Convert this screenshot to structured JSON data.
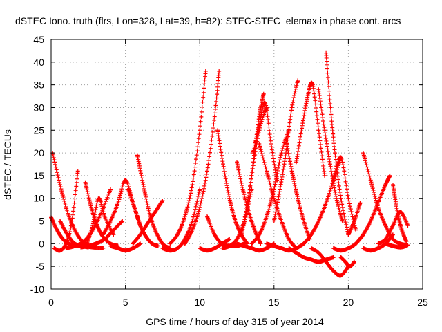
{
  "chart_data": {
    "type": "scatter",
    "title": "dSTEC Iono. truth (flrs, Lon=328, Lat=39, h=82): STEC-STEC_elemax in phase cont. arcs",
    "xlabel": "GPS time / hours of day 315 of year 2014",
    "ylabel": "dSTEC  / TECUs",
    "xlim": [
      0,
      25
    ],
    "ylim": [
      -10,
      45
    ],
    "x_ticks": [
      0,
      5,
      10,
      15,
      20,
      25
    ],
    "y_ticks": [
      -10,
      -5,
      0,
      5,
      10,
      15,
      20,
      25,
      30,
      35,
      40,
      45
    ],
    "grid": true,
    "marker": "+",
    "color": "#ff0000",
    "series": [
      {
        "x": [
          0.1,
          0.6,
          1.1,
          1.6,
          2.1,
          2.6,
          3.0
        ],
        "y": [
          20,
          13,
          7,
          3,
          0.5,
          -0.5,
          -0.8
        ]
      },
      {
        "x": [
          0.0,
          0.4,
          0.8,
          1.2,
          1.6,
          2.0,
          2.5
        ],
        "y": [
          5.8,
          3,
          1,
          0,
          -0.3,
          -0.5,
          -0.8
        ]
      },
      {
        "x": [
          0.2,
          0.6,
          1.0,
          1.4,
          1.8
        ],
        "y": [
          -1,
          -1.5,
          0,
          5,
          16
        ]
      },
      {
        "x": [
          0.6,
          1.1,
          1.6,
          2.2,
          2.8,
          3.5
        ],
        "y": [
          5,
          2,
          0,
          -0.5,
          -0.8,
          -1
        ]
      },
      {
        "x": [
          1.0,
          1.6,
          2.2,
          2.8,
          3.4,
          4.0
        ],
        "y": [
          -1,
          -0.5,
          0.5,
          3,
          7,
          12
        ]
      },
      {
        "x": [
          2.3,
          2.7,
          3.1,
          3.5,
          4.0,
          4.5
        ],
        "y": [
          13.5,
          8,
          4,
          1.5,
          0,
          -0.5
        ]
      },
      {
        "x": [
          2.4,
          2.8,
          3.2,
          3.6,
          4.2
        ],
        "y": [
          0,
          4,
          10,
          6,
          2
        ]
      },
      {
        "x": [
          2.0,
          2.5,
          3.0,
          3.6,
          4.2,
          4.8
        ],
        "y": [
          -0.8,
          -0.5,
          0,
          1,
          3,
          5
        ]
      },
      {
        "x": [
          3.5,
          4.0,
          4.5,
          5.0,
          5.5,
          6.0
        ],
        "y": [
          2,
          5,
          9,
          14,
          9,
          4
        ]
      },
      {
        "x": [
          4.0,
          4.5,
          5.0,
          5.5,
          6.0
        ],
        "y": [
          -0.5,
          -1,
          -1.5,
          -1,
          0
        ]
      },
      {
        "x": [
          5.2,
          5.6,
          6.0,
          6.4,
          6.8,
          7.2
        ],
        "y": [
          12,
          8,
          4,
          1.5,
          0,
          -0.5
        ]
      },
      {
        "x": [
          5.8,
          6.2,
          6.6,
          7.0,
          7.5,
          8.0
        ],
        "y": [
          19.5,
          13,
          7,
          3,
          0,
          -1
        ]
      },
      {
        "x": [
          5.5,
          6.0,
          6.5,
          7.0,
          7.5
        ],
        "y": [
          0,
          2,
          4.5,
          7,
          9.5
        ]
      },
      {
        "x": [
          7.5,
          8.0,
          8.5,
          9.0,
          9.5,
          10.0
        ],
        "y": [
          -1,
          -1.5,
          -1,
          1,
          5,
          12
        ]
      },
      {
        "x": [
          8.0,
          8.5,
          9.0,
          9.5,
          10.0,
          10.4
        ],
        "y": [
          0,
          2,
          6,
          13,
          25,
          38
        ]
      },
      {
        "x": [
          9.0,
          9.5,
          10.0,
          10.5,
          11.0,
          11.3
        ],
        "y": [
          0,
          3,
          8,
          16,
          28,
          38
        ]
      },
      {
        "x": [
          10.0,
          10.5,
          11.0,
          11.5,
          12.0
        ],
        "y": [
          -1,
          -1.5,
          -1,
          0,
          1
        ]
      },
      {
        "x": [
          11.2,
          11.6,
          12.0,
          12.4,
          12.8,
          13.2
        ],
        "y": [
          25,
          17,
          10,
          5,
          2,
          0
        ]
      },
      {
        "x": [
          10.5,
          11.0,
          11.5,
          12.0,
          12.5,
          13.0
        ],
        "y": [
          6,
          2,
          0,
          -0.5,
          -0.5,
          0
        ]
      },
      {
        "x": [
          11.5,
          12.0,
          12.5,
          13.0,
          13.5
        ],
        "y": [
          -1,
          -0.5,
          1,
          5,
          12
        ]
      },
      {
        "x": [
          12.5,
          12.9,
          13.3,
          13.7,
          14.1
        ],
        "y": [
          18,
          12,
          7,
          3,
          0
        ]
      },
      {
        "x": [
          12.8,
          13.2,
          13.6,
          14.0,
          14.3
        ],
        "y": [
          2,
          8,
          18,
          28,
          33
        ]
      },
      {
        "x": [
          13.0,
          13.5,
          14.0,
          14.5
        ],
        "y": [
          5,
          15,
          25,
          30
        ]
      },
      {
        "x": [
          13.6,
          14.0,
          14.4,
          14.8,
          15.2
        ],
        "y": [
          20,
          26,
          31,
          22,
          14
        ]
      },
      {
        "x": [
          14.0,
          14.5,
          15.0,
          15.5,
          16.0,
          16.5
        ],
        "y": [
          22,
          16,
          10,
          5,
          1,
          -1
        ]
      },
      {
        "x": [
          12.5,
          13.0,
          13.5,
          14.0,
          14.5,
          15.0
        ],
        "y": [
          0,
          -0.5,
          -1,
          -1.5,
          -1,
          0
        ]
      },
      {
        "x": [
          13.5,
          14.0,
          14.5,
          15.0,
          15.5,
          16.0
        ],
        "y": [
          0,
          2,
          6,
          12,
          20,
          25
        ]
      },
      {
        "x": [
          14.5,
          15.0,
          15.5,
          16.0,
          16.5,
          17.0
        ],
        "y": [
          0,
          -0.5,
          -1,
          -1.5,
          -1,
          0
        ]
      },
      {
        "x": [
          15.0,
          15.4,
          15.8,
          16.2,
          16.6
        ],
        "y": [
          5,
          12,
          20,
          30,
          36
        ]
      },
      {
        "x": [
          15.8,
          16.2,
          16.6,
          17.0,
          17.4
        ],
        "y": [
          23,
          16,
          10,
          5,
          1
        ]
      },
      {
        "x": [
          16.5,
          16.9,
          17.3,
          17.6,
          18.0,
          18.4
        ],
        "y": [
          18,
          26,
          33,
          35,
          25,
          15
        ]
      },
      {
        "x": [
          16.0,
          16.5,
          17.0,
          17.5,
          18.0,
          18.5,
          19.0
        ],
        "y": [
          -1,
          -2,
          -3,
          -3.5,
          -4,
          -3.5,
          -3
        ]
      },
      {
        "x": [
          17.5,
          18.0,
          18.5,
          19.0,
          19.5,
          20.0
        ],
        "y": [
          -1,
          -2,
          -4,
          -6,
          -7,
          -5
        ]
      },
      {
        "x": [
          18.0,
          18.4,
          18.8,
          19.2,
          19.6
        ],
        "y": [
          34,
          25,
          17,
          10,
          5
        ]
      },
      {
        "x": [
          18.5,
          18.8,
          19.1,
          19.5,
          20.0
        ],
        "y": [
          42,
          30,
          20,
          10,
          2
        ]
      },
      {
        "x": [
          19.0,
          19.5,
          20.0,
          20.5
        ],
        "y": [
          14,
          19,
          10,
          3
        ]
      },
      {
        "x": [
          19.5,
          19.8,
          20.1,
          20.4
        ],
        "y": [
          -3,
          -4,
          -5,
          -4
        ]
      },
      {
        "x": [
          17.0,
          17.5,
          18.0,
          18.5,
          19.0,
          19.5
        ],
        "y": [
          0,
          2,
          5,
          9,
          14,
          19
        ]
      },
      {
        "x": [
          19.0,
          19.5,
          20.0,
          20.5,
          21.0
        ],
        "y": [
          -1,
          -1.5,
          -1,
          0,
          2
        ]
      },
      {
        "x": [
          20.0,
          20.4,
          20.8
        ],
        "y": [
          2,
          5,
          9
        ]
      },
      {
        "x": [
          21.0,
          21.5,
          22.0,
          22.5,
          23.0,
          23.5,
          24.0
        ],
        "y": [
          20,
          14,
          8,
          4,
          1,
          0,
          -0.3
        ]
      },
      {
        "x": [
          20.5,
          21.0,
          21.5,
          22.0,
          22.5,
          22.8
        ],
        "y": [
          0,
          2,
          5,
          9,
          13,
          15
        ]
      },
      {
        "x": [
          21.0,
          21.5,
          22.0,
          22.5,
          23.0
        ],
        "y": [
          -1,
          -1.5,
          -1,
          0,
          2
        ]
      },
      {
        "x": [
          22.0,
          22.5,
          23.0,
          23.5,
          24.0
        ],
        "y": [
          0,
          1,
          4,
          7,
          4
        ]
      },
      {
        "x": [
          23.0,
          23.3,
          23.6,
          23.9
        ],
        "y": [
          13,
          7,
          3,
          0.5
        ]
      },
      {
        "x": [
          22.5,
          23.0,
          23.5,
          23.9
        ],
        "y": [
          0,
          -0.5,
          -0.8,
          -0.5
        ]
      }
    ]
  }
}
